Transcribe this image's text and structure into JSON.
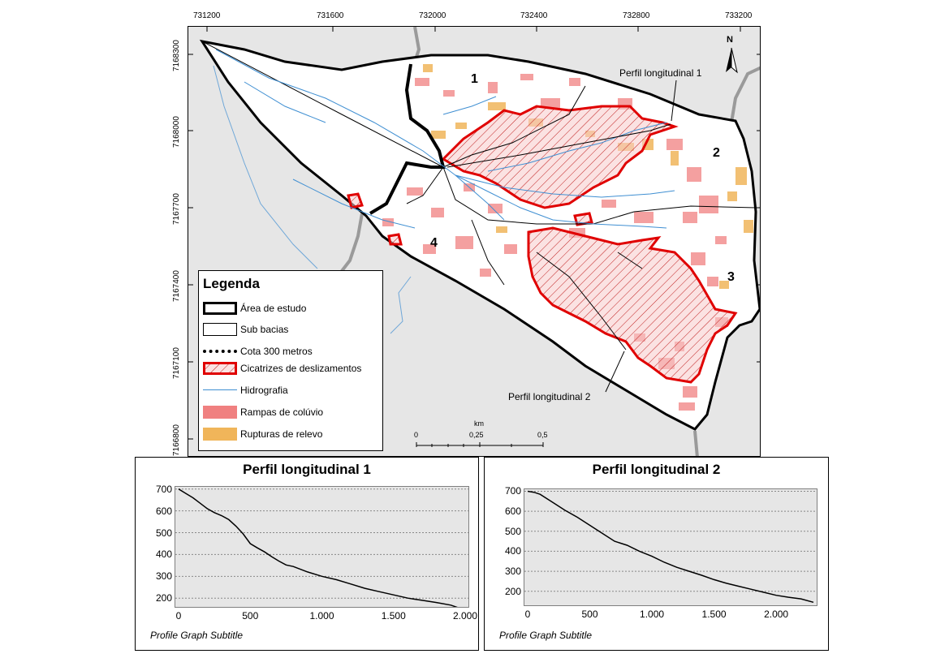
{
  "map": {
    "x_ticks": [
      "731200",
      "731600",
      "732000",
      "732400",
      "732800",
      "733200"
    ],
    "y_ticks": [
      "7168300",
      "7168000",
      "7167700",
      "7167400",
      "7167100",
      "7166800"
    ],
    "north_label": "N",
    "subbasin_labels": [
      "1",
      "2",
      "3",
      "4"
    ],
    "perfil_labels": [
      "Perfil longitudinal 1",
      "Perfil longitudinal 2"
    ],
    "colors": {
      "background": "#e6e6e6",
      "study_area": "#ffffff",
      "hidrografia": "#3f8fd2",
      "cicatrizes": "#e00000",
      "rampas": "#f08080",
      "rupturas": "#f0b55a",
      "roads": "#9a9a9a"
    }
  },
  "legend": {
    "title": "Legenda",
    "items": [
      {
        "label": "Área de estudo",
        "symbol": "thick-outline"
      },
      {
        "label": "Sub bacias",
        "symbol": "thin-outline"
      },
      {
        "label": "Cota 300 metros",
        "symbol": "dashed-line"
      },
      {
        "label": "Cicatrizes de deslizamentos",
        "symbol": "red-hatched"
      },
      {
        "label": "Hidrografia",
        "symbol": "blue-line"
      },
      {
        "label": "Rampas de colúvio",
        "symbol": "pink-fill"
      },
      {
        "label": "Rupturas de relevo",
        "symbol": "orange-fill"
      }
    ]
  },
  "scalebar": {
    "unit": "km",
    "labels": [
      "0",
      "0,25",
      "0,5"
    ]
  },
  "chart_data": [
    {
      "type": "line",
      "title": "Perfil longitudinal 1",
      "subtitle": "Profile Graph Subtitle",
      "x_tick_labels": [
        "0",
        "500",
        "1.000",
        "1.500",
        "2.000"
      ],
      "y_tick_labels": [
        "200",
        "300",
        "400",
        "500",
        "600",
        "700"
      ],
      "xlim": [
        0,
        2000
      ],
      "ylim": [
        160,
        710
      ],
      "grid": true,
      "x": [
        0,
        50,
        100,
        150,
        200,
        250,
        300,
        350,
        400,
        450,
        500,
        550,
        600,
        650,
        700,
        750,
        800,
        900,
        1000,
        1100,
        1200,
        1300,
        1400,
        1500,
        1600,
        1700,
        1800,
        1900,
        2000
      ],
      "y": [
        700,
        680,
        660,
        635,
        610,
        592,
        578,
        560,
        530,
        495,
        450,
        430,
        412,
        390,
        370,
        352,
        345,
        320,
        300,
        285,
        265,
        245,
        230,
        215,
        200,
        190,
        180,
        168,
        145
      ]
    },
    {
      "type": "line",
      "title": "Perfil longitudinal 2",
      "subtitle": "Profile Graph Subtitle",
      "x_tick_labels": [
        "0",
        "500",
        "1.000",
        "1.500",
        "2.000"
      ],
      "y_tick_labels": [
        "200",
        "300",
        "400",
        "500",
        "600",
        "700"
      ],
      "xlim": [
        0,
        2300
      ],
      "ylim": [
        130,
        710
      ],
      "grid": true,
      "x": [
        0,
        50,
        100,
        200,
        300,
        400,
        500,
        600,
        700,
        800,
        900,
        1000,
        1100,
        1200,
        1300,
        1400,
        1500,
        1600,
        1700,
        1800,
        1900,
        2000,
        2100,
        2200,
        2300
      ],
      "y": [
        700,
        695,
        685,
        645,
        605,
        570,
        530,
        490,
        450,
        430,
        400,
        375,
        345,
        320,
        300,
        280,
        258,
        240,
        225,
        210,
        195,
        180,
        170,
        162,
        145
      ]
    }
  ]
}
